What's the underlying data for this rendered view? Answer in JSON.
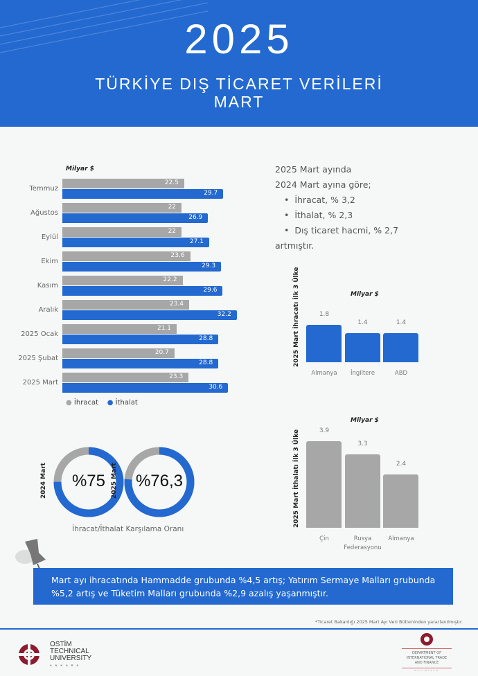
{
  "header": {
    "year": "2025",
    "title_line1": "TÜRKİYE DIŞ TİCARET VERİLERİ",
    "title_line2": "MART",
    "color": "#2369d0"
  },
  "chart_data": [
    {
      "type": "bar",
      "orientation": "horizontal",
      "unit": "Milyar $",
      "categories": [
        "Temmuz",
        "Ağustos",
        "Eylül",
        "Ekim",
        "Kasım",
        "Aralık",
        "2025 Ocak",
        "2025 Şubat",
        "2025 Mart"
      ],
      "series": [
        {
          "name": "İhracat",
          "color": "#a7a7a7",
          "values": [
            22.5,
            22,
            22,
            23.6,
            22.2,
            23.4,
            21.1,
            20.7,
            23.3
          ],
          "labels": [
            "22.5",
            "22",
            "22",
            "23.6",
            "22.2",
            "23.4",
            "21.1",
            "20.7",
            "23.3"
          ]
        },
        {
          "name": "İthalat",
          "color": "#2369d0",
          "values": [
            29.7,
            26.9,
            27.1,
            29.3,
            29.6,
            32.2,
            28.8,
            28.8,
            30.6
          ],
          "labels": [
            "29.7",
            "26.9",
            "27.1",
            "29.3",
            "29.6",
            "32.2",
            "28.8",
            "28.8",
            "30.6"
          ]
        }
      ],
      "legend": "bottom"
    },
    {
      "type": "bar",
      "title": "2025 Mart İhracatı İlk 3 Ülke",
      "unit": "Milyar $",
      "categories": [
        "Almanya",
        "İngiltere",
        "ABD"
      ],
      "values": [
        1.8,
        1.4,
        1.4
      ],
      "labels": [
        "1.8",
        "1.4",
        "1.4"
      ],
      "color": "#2369d0"
    },
    {
      "type": "bar",
      "title": "2025 Mart İthalatı İlk 3 Ülke",
      "unit": "Milyar $",
      "categories": [
        "Çin",
        "Rusya Federasyonu",
        "Almanya"
      ],
      "values": [
        3.9,
        3.3,
        2.4
      ],
      "labels": [
        "3.9",
        "3.3",
        "2.4"
      ],
      "color": "#a7a7a7"
    },
    {
      "type": "pie",
      "variant": "donut",
      "title": "İhracat/İthalat Karşılama Oranı",
      "items": [
        {
          "label": "2024 Mart",
          "value": 75,
          "text": "%75"
        },
        {
          "label": "2025 Mart",
          "value": 76.3,
          "text": "%76,3"
        }
      ]
    }
  ],
  "summary": {
    "line1": "2025 Mart ayında",
    "line2": "2024  Mart ayına göre;",
    "bullets": [
      "İhracat, % 3,2",
      "İthalat, % 2,3",
      "Dış ticaret hacmi, % 2,7"
    ],
    "line3": "artmıştır."
  },
  "note": "Mart ayı ihracatında Hammadde grubunda %4,5 artış; Yatırım Sermaye Malları grubunda %5,2 artış ve Tüketim Malları grubunda %2,9 azalış yaşanmıştır.",
  "footnote": "*Ticaret Bakanlığı 2025 Mart Ayı Veri Bülteninden yararlanılmıştır.",
  "footer": {
    "logo_left": [
      "OSTİM",
      "TECHNICAL",
      "UNIVERSITY",
      "A N K A R A"
    ],
    "logo_right": [
      "DEPARTMENT OF",
      "INTERNATIONAL TRADE",
      "AND FINANCE",
      "OSTIMTECH"
    ]
  }
}
